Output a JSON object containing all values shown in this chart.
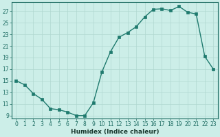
{
  "x": [
    0,
    1,
    2,
    3,
    4,
    5,
    6,
    7,
    8,
    9,
    10,
    11,
    12,
    13,
    14,
    15,
    16,
    17,
    18,
    19,
    20,
    21,
    22,
    23
  ],
  "y": [
    15,
    14.3,
    12.8,
    11.8,
    10.2,
    10.0,
    9.6,
    9.0,
    9.0,
    11.2,
    16.5,
    20.0,
    22.5,
    23.3,
    24.3,
    26.0,
    27.3,
    27.4,
    27.1,
    27.8,
    26.8,
    26.5,
    19.2,
    17.0
  ],
  "line_color": "#1f7a6e",
  "marker_color": "#1f7a6e",
  "bg_color": "#cceee8",
  "grid_major_color": "#b0d8d0",
  "grid_minor_color": "#c5e5e0",
  "xlabel": "Humidex (Indice chaleur)",
  "ylim": [
    8.5,
    28.5
  ],
  "xlim": [
    -0.5,
    23.5
  ],
  "yticks": [
    9,
    11,
    13,
    15,
    17,
    19,
    21,
    23,
    25,
    27
  ],
  "xticks": [
    0,
    1,
    2,
    3,
    4,
    5,
    6,
    7,
    8,
    9,
    10,
    11,
    12,
    13,
    14,
    15,
    16,
    17,
    18,
    19,
    20,
    21,
    22,
    23
  ],
  "tick_fontsize": 5.5,
  "xlabel_fontsize": 6.5
}
